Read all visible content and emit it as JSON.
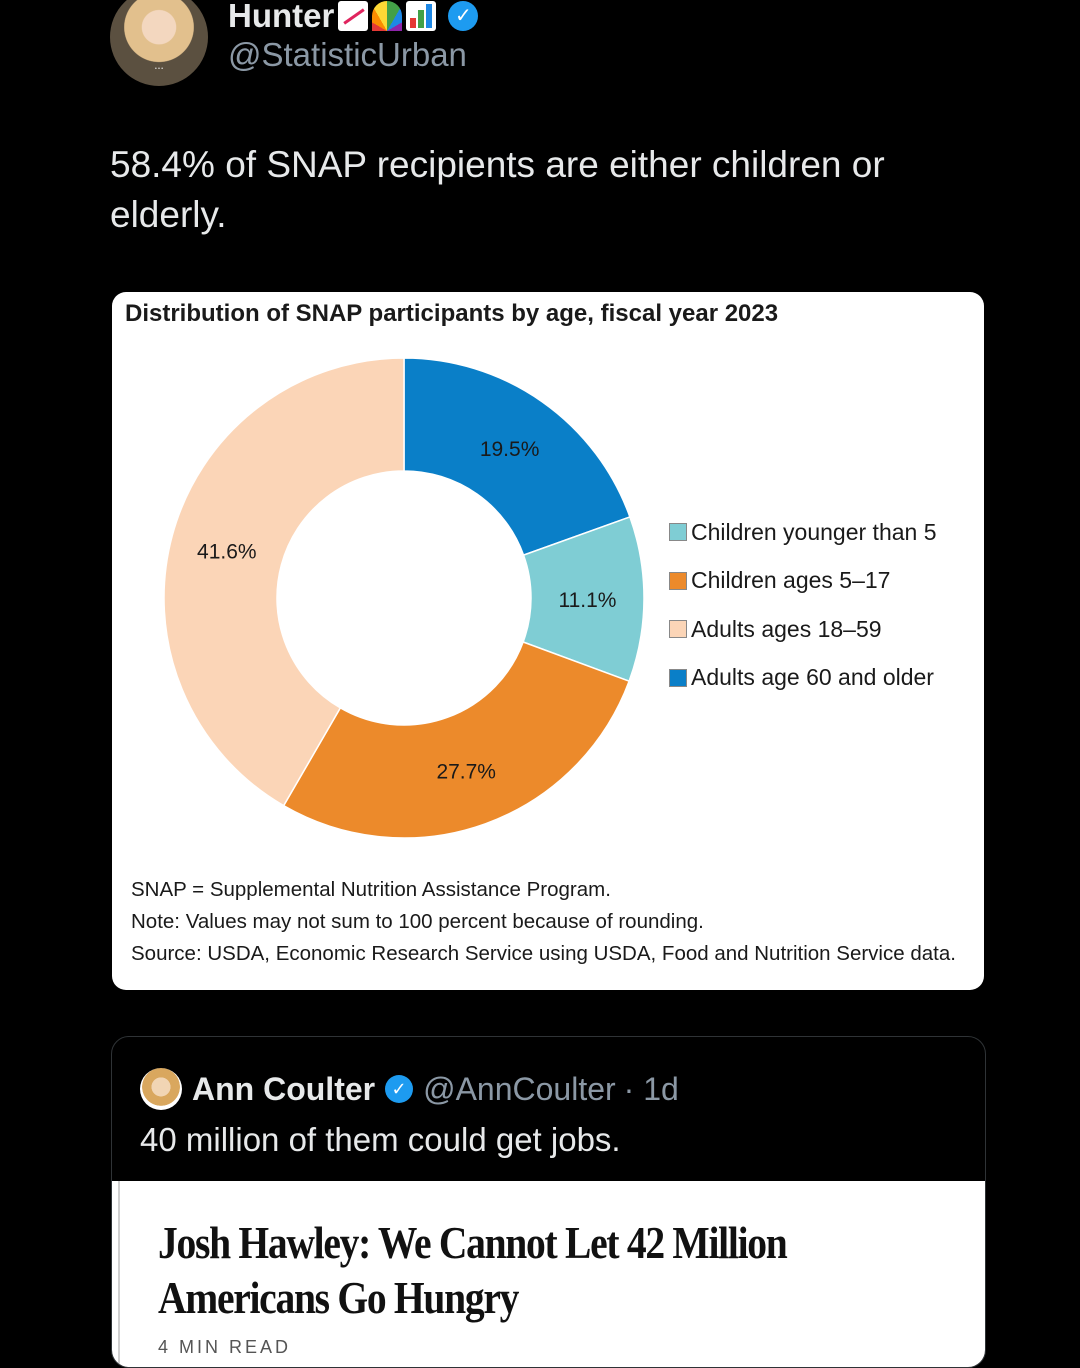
{
  "tweet": {
    "display_name": "Hunter",
    "name_emojis": [
      "chart-increasing-icon",
      "rainbow-icon",
      "bar-chart-icon"
    ],
    "handle": "@StatisticUrban",
    "text": "58.4% of SNAP recipients are either children or elderly."
  },
  "chart_card": {
    "notes": [
      "SNAP = Supplemental Nutrition Assistance Program.",
      "Note: Values may not sum to 100 percent because of rounding.",
      "Source: USDA, Economic Research Service using USDA, Food and Nutrition Service data."
    ]
  },
  "chart_data": {
    "type": "pie",
    "subtype": "donut",
    "title": "Distribution of SNAP participants by age, fiscal year 2023",
    "categories": [
      "Children younger than 5",
      "Children ages 5–17",
      "Adults ages 18–59",
      "Adults age 60 and older"
    ],
    "values": [
      11.1,
      27.7,
      41.6,
      19.5
    ],
    "labels": [
      "11.1%",
      "27.7%",
      "41.6%",
      "19.5%"
    ],
    "colors": [
      "#7fcdd4",
      "#ec8a2b",
      "#fbd5b7",
      "#0a7fc8"
    ],
    "legend_position": "right"
  },
  "quote": {
    "display_name": "Ann Coulter",
    "handle": "@AnnCoulter",
    "time": "· 1d",
    "text": "40 million of them could get jobs.",
    "article_headline": "Josh Hawley: We Cannot Let 42 Million Americans Go Hungry",
    "article_readtime": "4 MIN READ"
  }
}
